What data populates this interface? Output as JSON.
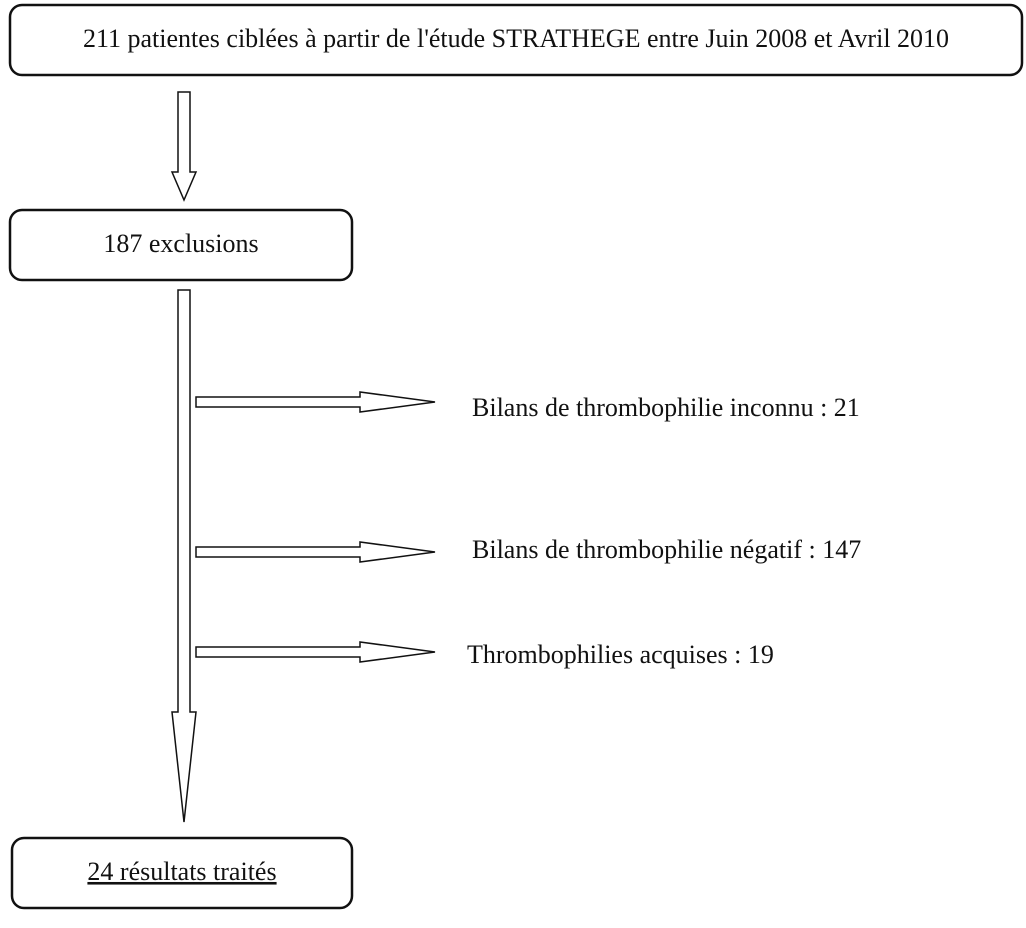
{
  "nodes": [
    {
      "label": "211 patientes ciblées à partir de l'étude STRATHEGE entre Juin 2008 et Avril 2010"
    },
    {
      "label": "187 exclusions"
    },
    {
      "label": "Bilans de thrombophilie inconnu : 21"
    },
    {
      "label": "Bilans de thrombophilie négatif : 147"
    },
    {
      "label": "Thrombophilies acquises : 19"
    },
    {
      "label": "24 résultats traités"
    }
  ]
}
